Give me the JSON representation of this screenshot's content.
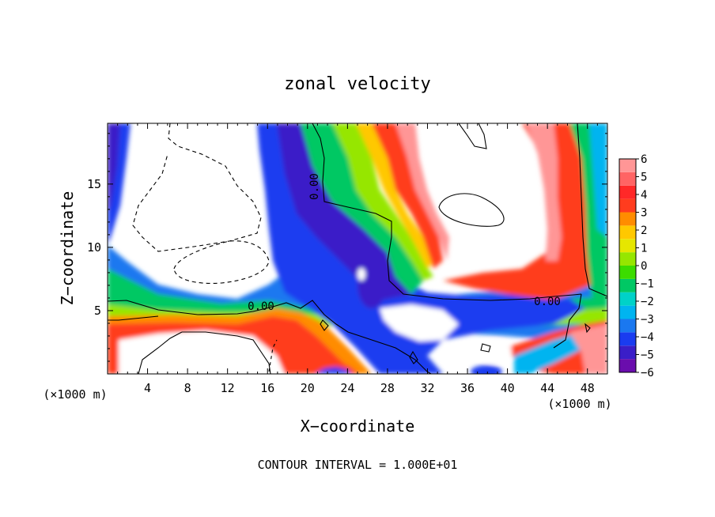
{
  "chart_data": {
    "type": "heatmap",
    "title": "zonal velocity",
    "xlabel": "X−coordinate",
    "ylabel": "Z−coordinate",
    "x_unit_left": "(×1000 m)",
    "x_unit_right": "(×1000 m)",
    "footer": "CONTOUR INTERVAL = 1.000E+01",
    "xlim": [
      0,
      50
    ],
    "ylim": [
      0,
      19.8
    ],
    "x_ticks": [
      4,
      8,
      12,
      16,
      20,
      24,
      28,
      32,
      36,
      40,
      44,
      48
    ],
    "y_ticks": [
      5,
      10,
      15
    ],
    "colorbar": {
      "min": -6,
      "max": 6,
      "tick_labels": [
        "6",
        "5",
        "4",
        "3",
        "2",
        "1",
        "0",
        "−1",
        "−2",
        "−3",
        "−4",
        "−5",
        "−6"
      ],
      "colors": [
        "#6a0dad",
        "#3a1ec8",
        "#1a3cf0",
        "#1a78f0",
        "#00b4f0",
        "#00d2c8",
        "#00c864",
        "#3cdc00",
        "#96e600",
        "#e6e600",
        "#ffc800",
        "#ff8c00",
        "#ff3c1e",
        "#ff2828",
        "#ff6464",
        "#ff9696"
      ]
    },
    "contour_labels": [
      {
        "x": 21.2,
        "y": 14.8,
        "text": "0.00"
      },
      {
        "x": 14.8,
        "y": 5.1,
        "text": "0.00"
      },
      {
        "x": 43.6,
        "y": 5.8,
        "text": "0.00"
      }
    ]
  }
}
